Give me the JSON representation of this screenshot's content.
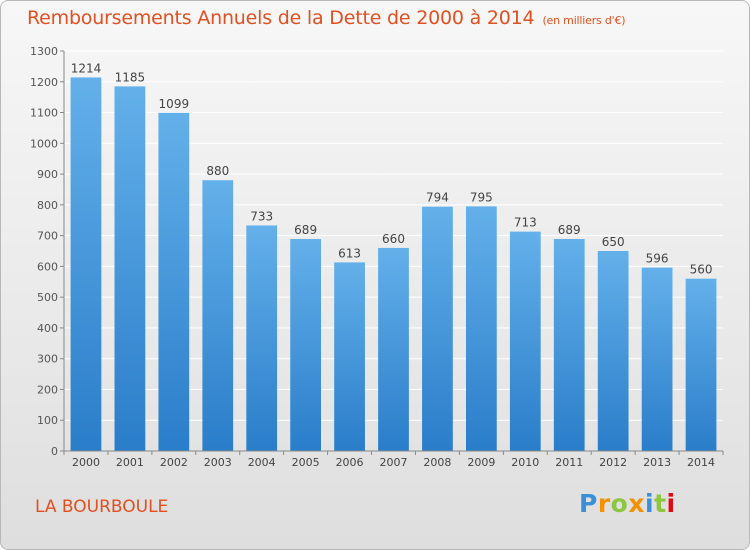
{
  "title": "Remboursements Annuels de la Dette de 2000 à 2014",
  "unit": "(en milliers d'€)",
  "place": "LA BOURBOULE",
  "logo": {
    "text": "Proxiti",
    "letter_colors": [
      "#3a8fd6",
      "#f39200",
      "#8dc63f",
      "#f39200",
      "#3a8fd6",
      "#8dc63f",
      "#e30613"
    ]
  },
  "colors": {
    "bar_top": "#63b0ea",
    "bar_bottom": "#2a7dc9",
    "text": "#e05020"
  },
  "chart_data": {
    "type": "bar",
    "categories": [
      "2000",
      "2001",
      "2002",
      "2003",
      "2004",
      "2005",
      "2006",
      "2007",
      "2008",
      "2009",
      "2010",
      "2011",
      "2012",
      "2013",
      "2014"
    ],
    "values": [
      1214,
      1185,
      1099,
      880,
      733,
      689,
      613,
      660,
      794,
      795,
      713,
      689,
      650,
      596,
      560
    ],
    "title": "Remboursements Annuels de la Dette de 2000 à 2014",
    "ylim": [
      0,
      1300
    ],
    "yticks": [
      0,
      100,
      200,
      300,
      400,
      500,
      600,
      700,
      800,
      900,
      1000,
      1100,
      1200,
      1300
    ],
    "grid": true,
    "data_labels": true
  }
}
